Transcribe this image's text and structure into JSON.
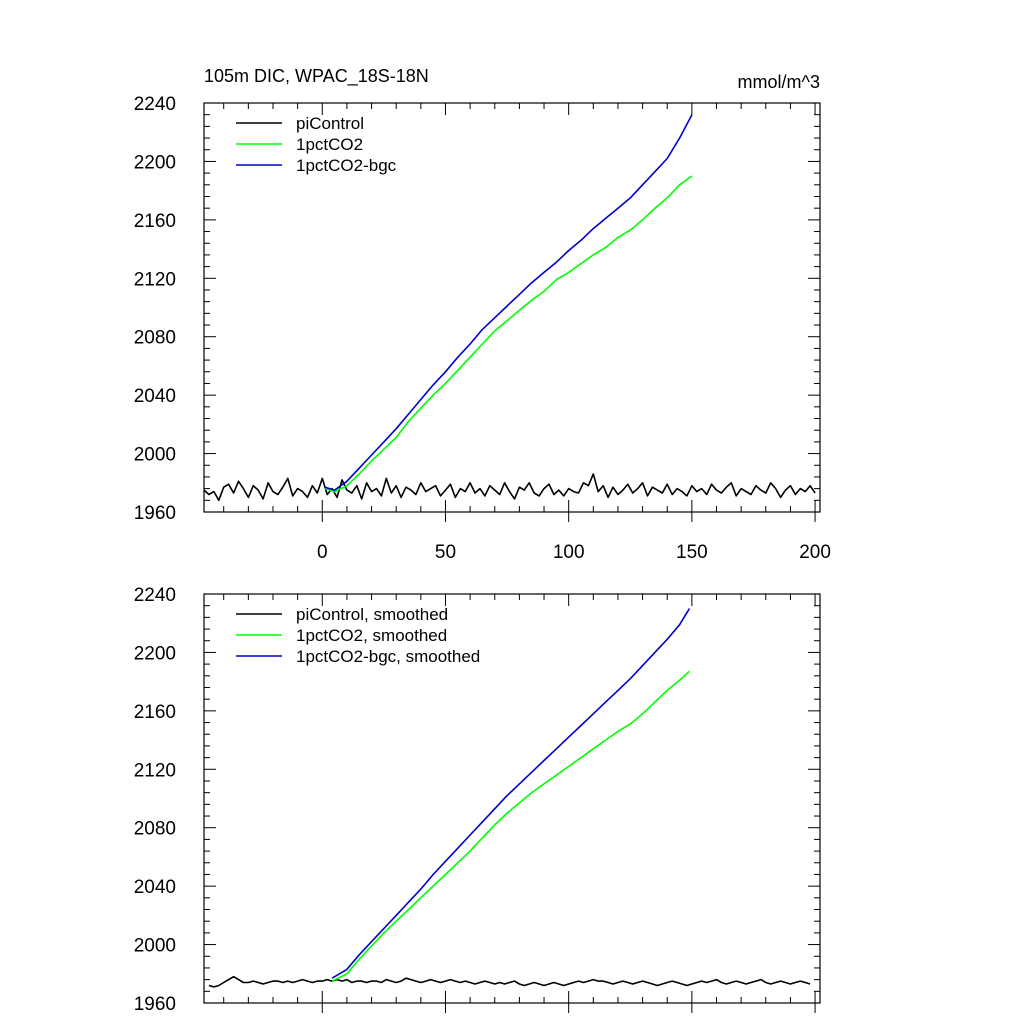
{
  "title_left": "105m DIC, WPAC_18S-18N",
  "title_right": "mmol/m^3",
  "colors": {
    "piControl": "#000000",
    "1pctCO2": "#00ff00",
    "1pctCO2-bgc": "#0000cc"
  },
  "chart_data": [
    {
      "type": "line",
      "panel": "raw",
      "title": "105m DIC, WPAC_18S-18N",
      "units": "mmol/m^3",
      "xlim": [
        -48,
        202
      ],
      "ylim": [
        1960,
        2240
      ],
      "xticks": [
        0,
        50,
        100,
        150,
        200
      ],
      "yticks": [
        1960,
        2000,
        2040,
        2080,
        2120,
        2160,
        2200,
        2240
      ],
      "legend": "top-left",
      "series": [
        {
          "name": "piControl",
          "color": "#000000",
          "x": [
            -48,
            -46,
            -44,
            -42,
            -40,
            -38,
            -36,
            -34,
            -32,
            -30,
            -28,
            -26,
            -24,
            -22,
            -20,
            -18,
            -16,
            -14,
            -12,
            -10,
            -8,
            -6,
            -4,
            -2,
            0,
            2,
            4,
            6,
            8,
            10,
            12,
            14,
            16,
            18,
            20,
            22,
            24,
            26,
            28,
            30,
            32,
            34,
            36,
            38,
            40,
            42,
            44,
            46,
            48,
            50,
            52,
            54,
            56,
            58,
            60,
            62,
            64,
            66,
            68,
            70,
            72,
            74,
            76,
            78,
            80,
            82,
            84,
            86,
            88,
            90,
            92,
            94,
            96,
            98,
            100,
            102,
            104,
            106,
            108,
            110,
            112,
            114,
            116,
            118,
            120,
            122,
            124,
            126,
            128,
            130,
            132,
            134,
            136,
            138,
            140,
            142,
            144,
            146,
            148,
            150,
            152,
            154,
            156,
            158,
            160,
            162,
            164,
            166,
            168,
            170,
            172,
            174,
            176,
            178,
            180,
            182,
            184,
            186,
            188,
            190,
            192,
            194,
            196,
            198,
            200
          ],
          "y": [
            1975,
            1972,
            1974,
            1968,
            1977,
            1979,
            1973,
            1981,
            1976,
            1970,
            1978,
            1975,
            1969,
            1980,
            1974,
            1972,
            1977,
            1983,
            1971,
            1976,
            1974,
            1970,
            1978,
            1973,
            1983,
            1972,
            1976,
            1970,
            1982,
            1975,
            1973,
            1978,
            1969,
            1980,
            1974,
            1976,
            1971,
            1983,
            1973,
            1978,
            1970,
            1977,
            1975,
            1972,
            1980,
            1974,
            1976,
            1978,
            1971,
            1975,
            1979,
            1970,
            1976,
            1974,
            1980,
            1973,
            1976,
            1971,
            1978,
            1975,
            1972,
            1980,
            1974,
            1969,
            1977,
            1975,
            1980,
            1973,
            1971,
            1976,
            1979,
            1972,
            1975,
            1971,
            1976,
            1974,
            1973,
            1980,
            1978,
            1986,
            1974,
            1978,
            1970,
            1977,
            1972,
            1975,
            1979,
            1973,
            1976,
            1980,
            1971,
            1977,
            1975,
            1973,
            1979,
            1972,
            1976,
            1974,
            1971,
            1978,
            1974,
            1976,
            1972,
            1979,
            1975,
            1973,
            1977,
            1980,
            1971,
            1976,
            1974,
            1972,
            1978,
            1975,
            1973,
            1980,
            1976,
            1970,
            1975,
            1978,
            1972,
            1976,
            1974,
            1978,
            1973
          ]
        },
        {
          "name": "1pctCO2",
          "color": "#00ff00",
          "x": [
            1,
            5,
            10,
            15,
            20,
            25,
            30,
            35,
            40,
            45,
            50,
            55,
            60,
            65,
            70,
            75,
            80,
            85,
            90,
            95,
            100,
            105,
            110,
            115,
            120,
            125,
            130,
            135,
            140,
            145,
            150
          ],
          "y": [
            1976,
            1974,
            1978,
            1986,
            1995,
            2003,
            2011,
            2022,
            2031,
            2040,
            2048,
            2057,
            2066,
            2075,
            2084,
            2091,
            2098,
            2105,
            2111,
            2119,
            2124,
            2130,
            2136,
            2141,
            2148,
            2153,
            2160,
            2168,
            2175,
            2184,
            2190
          ]
        },
        {
          "name": "1pctCO2-bgc",
          "color": "#0000cc",
          "x": [
            1,
            5,
            10,
            15,
            20,
            25,
            30,
            35,
            40,
            45,
            50,
            55,
            60,
            65,
            70,
            75,
            80,
            85,
            90,
            95,
            100,
            105,
            110,
            115,
            120,
            125,
            130,
            135,
            140,
            145,
            150
          ],
          "y": [
            1977,
            1975,
            1981,
            1990,
            1999,
            2008,
            2017,
            2027,
            2037,
            2047,
            2056,
            2066,
            2075,
            2085,
            2093,
            2101,
            2109,
            2117,
            2124,
            2131,
            2139,
            2146,
            2154,
            2161,
            2168,
            2175,
            2184,
            2193,
            2202,
            2216,
            2232
          ]
        }
      ]
    },
    {
      "type": "line",
      "panel": "smoothed",
      "xlim": [
        -48,
        202
      ],
      "ylim": [
        1960,
        2240
      ],
      "xticks": [
        0,
        50,
        100,
        150,
        200
      ],
      "yticks": [
        1960,
        2000,
        2040,
        2080,
        2120,
        2160,
        2200,
        2240
      ],
      "legend": "top-left",
      "series": [
        {
          "name": "piControl, smoothed",
          "color": "#000000",
          "x": [
            -46,
            -44,
            -42,
            -40,
            -38,
            -36,
            -34,
            -32,
            -30,
            -28,
            -26,
            -24,
            -22,
            -20,
            -18,
            -16,
            -14,
            -12,
            -10,
            -8,
            -6,
            -4,
            -2,
            0,
            2,
            4,
            6,
            8,
            10,
            12,
            14,
            16,
            18,
            20,
            22,
            24,
            26,
            28,
            30,
            32,
            34,
            36,
            38,
            40,
            42,
            44,
            46,
            48,
            50,
            52,
            54,
            56,
            58,
            60,
            62,
            64,
            66,
            68,
            70,
            72,
            74,
            76,
            78,
            80,
            82,
            84,
            86,
            88,
            90,
            92,
            94,
            96,
            98,
            100,
            102,
            104,
            106,
            108,
            110,
            112,
            114,
            116,
            118,
            120,
            122,
            124,
            126,
            128,
            130,
            132,
            134,
            136,
            138,
            140,
            142,
            144,
            146,
            148,
            150,
            152,
            154,
            156,
            158,
            160,
            162,
            164,
            166,
            168,
            170,
            172,
            174,
            176,
            178,
            180,
            182,
            184,
            186,
            188,
            190,
            192,
            194,
            196,
            198
          ],
          "y": [
            1972,
            1971,
            1972,
            1974,
            1976,
            1978,
            1976,
            1974,
            1974,
            1975,
            1974,
            1973,
            1974,
            1975,
            1975,
            1974,
            1975,
            1974,
            1975,
            1976,
            1975,
            1974,
            1975,
            1975,
            1976,
            1975,
            1976,
            1975,
            1976,
            1974,
            1975,
            1975,
            1974,
            1975,
            1975,
            1974,
            1976,
            1975,
            1974,
            1975,
            1977,
            1976,
            1975,
            1974,
            1975,
            1976,
            1975,
            1974,
            1975,
            1976,
            1975,
            1974,
            1975,
            1974,
            1973,
            1974,
            1975,
            1974,
            1973,
            1974,
            1973,
            1974,
            1975,
            1973,
            1972,
            1973,
            1974,
            1973,
            1972,
            1973,
            1974,
            1973,
            1972,
            1973,
            1974,
            1975,
            1974,
            1975,
            1976,
            1975,
            1975,
            1974,
            1973,
            1974,
            1975,
            1974,
            1973,
            1974,
            1975,
            1974,
            1973,
            1972,
            1973,
            1974,
            1975,
            1974,
            1973,
            1972,
            1973,
            1974,
            1975,
            1974,
            1975,
            1976,
            1974,
            1973,
            1974,
            1975,
            1974,
            1973,
            1974,
            1975,
            1976,
            1974,
            1973,
            1974,
            1975,
            1974,
            1973,
            1974,
            1975,
            1974,
            1973
          ]
        },
        {
          "name": "1pctCO2, smoothed",
          "color": "#00ff00",
          "x": [
            4,
            10,
            15,
            20,
            25,
            30,
            35,
            40,
            45,
            50,
            55,
            60,
            65,
            70,
            75,
            80,
            85,
            90,
            95,
            100,
            105,
            110,
            115,
            120,
            125,
            130,
            135,
            140,
            145,
            149
          ],
          "y": [
            1975,
            1980,
            1990,
            1999,
            2008,
            2016,
            2024,
            2032,
            2040,
            2048,
            2056,
            2064,
            2073,
            2082,
            2090,
            2097,
            2104,
            2110,
            2116,
            2122,
            2128,
            2134,
            2140,
            2146,
            2151,
            2158,
            2166,
            2174,
            2181,
            2187
          ]
        },
        {
          "name": "1pctCO2-bgc, smoothed",
          "color": "#0000cc",
          "x": [
            4,
            10,
            15,
            20,
            25,
            30,
            35,
            40,
            45,
            50,
            55,
            60,
            65,
            70,
            75,
            80,
            85,
            90,
            95,
            100,
            105,
            110,
            115,
            120,
            125,
            130,
            135,
            140,
            145,
            149
          ],
          "y": [
            1977,
            1983,
            1993,
            2002,
            2011,
            2020,
            2029,
            2038,
            2048,
            2057,
            2066,
            2075,
            2084,
            2093,
            2102,
            2110,
            2118,
            2126,
            2134,
            2142,
            2150,
            2158,
            2166,
            2174,
            2182,
            2191,
            2200,
            2209,
            2219,
            2230
          ]
        }
      ]
    }
  ]
}
